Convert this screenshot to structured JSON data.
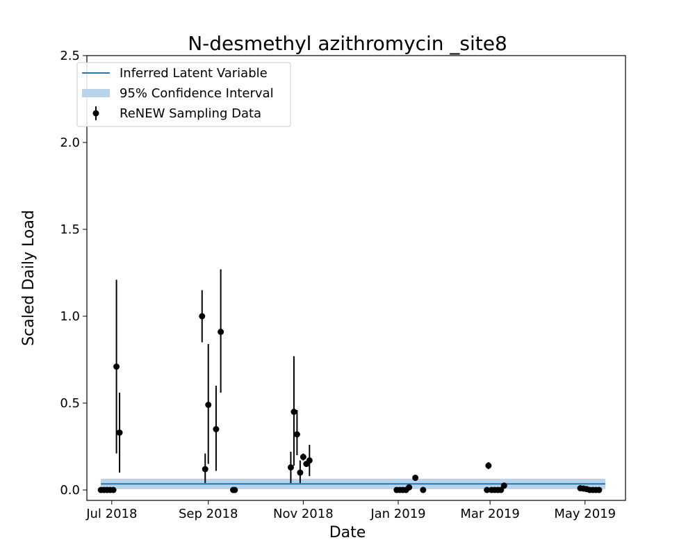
{
  "chart_data": {
    "type": "scatter",
    "title": "N-desmethyl azithromycin _site8",
    "xlabel": "Date",
    "ylabel": "Scaled Daily Load",
    "xlim": [
      "2018-06-15",
      "2019-05-27"
    ],
    "ylim": [
      -0.06,
      2.5
    ],
    "x_ticks": [
      {
        "date": "2018-07-01",
        "label": "Jul 2018"
      },
      {
        "date": "2018-09-01",
        "label": "Sep 2018"
      },
      {
        "date": "2018-11-01",
        "label": "Nov 2018"
      },
      {
        "date": "2019-01-01",
        "label": "Jan 2019"
      },
      {
        "date": "2019-03-01",
        "label": "Mar 2019"
      },
      {
        "date": "2019-05-01",
        "label": "May 2019"
      }
    ],
    "y_ticks": [
      {
        "value": 0.0,
        "label": "0.0"
      },
      {
        "value": 0.5,
        "label": "0.5"
      },
      {
        "value": 1.0,
        "label": "1.0"
      },
      {
        "value": 1.5,
        "label": "1.5"
      },
      {
        "value": 2.0,
        "label": "2.0"
      },
      {
        "value": 2.5,
        "label": "2.5"
      }
    ],
    "grid": false,
    "legend_position": "top-left",
    "legend": [
      {
        "label": "Inferred Latent Variable",
        "kind": "line"
      },
      {
        "label": "95% Confidence Interval",
        "kind": "band"
      },
      {
        "label": "ReNEW Sampling Data",
        "kind": "errorbar"
      }
    ],
    "colors": {
      "latent": "#1f77b4",
      "band": "#b9d3ea",
      "points": "#000000"
    },
    "latent": {
      "x_start": "2018-06-24",
      "x_end": "2019-05-14",
      "value": 0.035,
      "ci_low": 0.005,
      "ci_high": 0.065
    },
    "series": [
      {
        "points": [
          {
            "x": "2018-06-24",
            "y": 0.0
          },
          {
            "x": "2018-06-26",
            "y": 0.0
          },
          {
            "x": "2018-06-28",
            "y": 0.0
          },
          {
            "x": "2018-06-30",
            "y": 0.0
          },
          {
            "x": "2018-07-02",
            "y": 0.0
          },
          {
            "x": "2018-07-04",
            "y": 0.71,
            "lo": 0.21,
            "hi": 1.21
          },
          {
            "x": "2018-07-06",
            "y": 0.33,
            "lo": 0.1,
            "hi": 0.56
          },
          {
            "x": "2018-08-28",
            "y": 1.0,
            "lo": 0.85,
            "hi": 1.15
          },
          {
            "x": "2018-08-30",
            "y": 0.12,
            "lo": 0.04,
            "hi": 0.21
          },
          {
            "x": "2018-09-01",
            "y": 0.49,
            "lo": 0.15,
            "hi": 0.84
          },
          {
            "x": "2018-09-06",
            "y": 0.35,
            "lo": 0.11,
            "hi": 0.6
          },
          {
            "x": "2018-09-09",
            "y": 0.91,
            "lo": 0.56,
            "hi": 1.27
          },
          {
            "x": "2018-09-17",
            "y": 0.0
          },
          {
            "x": "2018-09-18",
            "y": 0.0
          },
          {
            "x": "2018-10-24",
            "y": 0.13,
            "lo": 0.04,
            "hi": 0.22
          },
          {
            "x": "2018-10-26",
            "y": 0.45,
            "lo": 0.14,
            "hi": 0.77
          },
          {
            "x": "2018-10-28",
            "y": 0.32,
            "lo": 0.2,
            "hi": 0.46
          },
          {
            "x": "2018-10-30",
            "y": 0.1,
            "lo": 0.04,
            "hi": 0.17
          },
          {
            "x": "2018-11-01",
            "y": 0.19,
            "lo": 0.17,
            "hi": 0.21
          },
          {
            "x": "2018-11-03",
            "y": 0.15
          },
          {
            "x": "2018-11-05",
            "y": 0.17,
            "lo": 0.08,
            "hi": 0.26
          },
          {
            "x": "2018-12-31",
            "y": 0.0
          },
          {
            "x": "2019-01-02",
            "y": 0.0
          },
          {
            "x": "2019-01-04",
            "y": 0.0
          },
          {
            "x": "2019-01-06",
            "y": 0.0
          },
          {
            "x": "2019-01-08",
            "y": 0.015
          },
          {
            "x": "2019-01-12",
            "y": 0.07
          },
          {
            "x": "2019-01-17",
            "y": 0.0
          },
          {
            "x": "2019-02-27",
            "y": 0.0
          },
          {
            "x": "2019-02-28",
            "y": 0.14,
            "lo": 0.12,
            "hi": 0.16
          },
          {
            "x": "2019-03-02",
            "y": 0.0
          },
          {
            "x": "2019-03-04",
            "y": 0.0
          },
          {
            "x": "2019-03-06",
            "y": 0.0
          },
          {
            "x": "2019-03-08",
            "y": 0.0
          },
          {
            "x": "2019-03-10",
            "y": 0.025
          },
          {
            "x": "2019-04-28",
            "y": 0.01
          },
          {
            "x": "2019-04-30",
            "y": 0.008
          },
          {
            "x": "2019-05-02",
            "y": 0.005
          },
          {
            "x": "2019-05-04",
            "y": 0.0
          },
          {
            "x": "2019-05-06",
            "y": 0.0
          },
          {
            "x": "2019-05-08",
            "y": 0.0
          },
          {
            "x": "2019-05-10",
            "y": 0.0
          }
        ]
      }
    ]
  }
}
